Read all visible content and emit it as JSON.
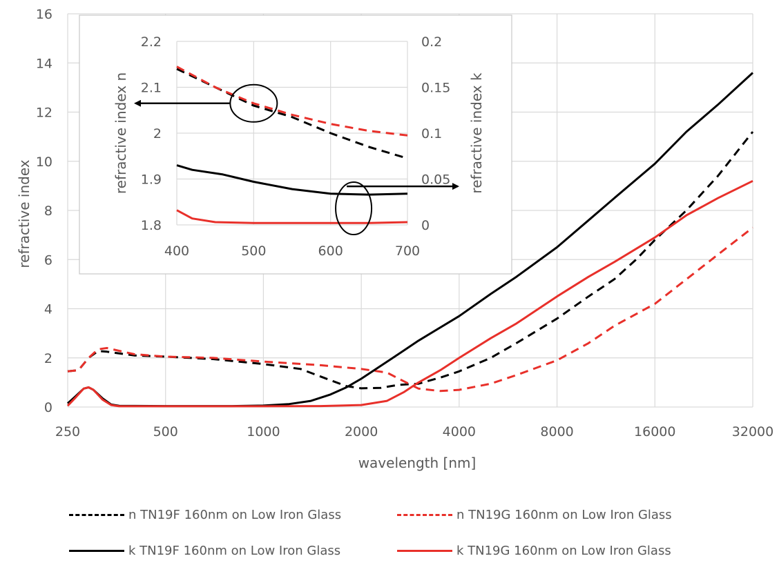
{
  "chart_data": [
    {
      "type": "line",
      "title": "",
      "xlabel": "wavelength [nm]",
      "ylabel": "refractive index",
      "xscale": "log2",
      "xlim": [
        250,
        32000
      ],
      "ylim": [
        0,
        16
      ],
      "xticks": [
        "250",
        "500",
        "1000",
        "2000",
        "4000",
        "8000",
        "16000",
        "32000"
      ],
      "yticks": [
        "0",
        "2",
        "4",
        "6",
        "8",
        "10",
        "12",
        "14",
        "16"
      ],
      "grid": true,
      "legend_position": "bottom",
      "series": [
        {
          "name": "n TN19F 160nm on Low Iron Glass",
          "color": "#000000",
          "style": "dashed",
          "points": [
            [
              250,
              1.45
            ],
            [
              270,
              1.5
            ],
            [
              290,
              2.0
            ],
            [
              310,
              2.28
            ],
            [
              330,
              2.25
            ],
            [
              400,
              2.1
            ],
            [
              500,
              2.05
            ],
            [
              700,
              1.95
            ],
            [
              1000,
              1.75
            ],
            [
              1300,
              1.55
            ],
            [
              1600,
              1.1
            ],
            [
              1800,
              0.85
            ],
            [
              2000,
              0.76
            ],
            [
              2300,
              0.78
            ],
            [
              2600,
              0.9
            ],
            [
              3000,
              0.95
            ],
            [
              3500,
              1.2
            ],
            [
              4000,
              1.45
            ],
            [
              5000,
              2.0
            ],
            [
              6000,
              2.6
            ],
            [
              8000,
              3.6
            ],
            [
              10000,
              4.5
            ],
            [
              12000,
              5.2
            ],
            [
              14000,
              6.0
            ],
            [
              16000,
              6.8
            ],
            [
              20000,
              8.0
            ],
            [
              25000,
              9.4
            ],
            [
              32000,
              11.2
            ]
          ]
        },
        {
          "name": "n TN19G 160nm on Low Iron Glass",
          "color": "#e8302a",
          "style": "dashed",
          "points": [
            [
              250,
              1.45
            ],
            [
              270,
              1.5
            ],
            [
              290,
              2.0
            ],
            [
              310,
              2.35
            ],
            [
              330,
              2.4
            ],
            [
              400,
              2.15
            ],
            [
              500,
              2.05
            ],
            [
              700,
              2.0
            ],
            [
              1000,
              1.85
            ],
            [
              1500,
              1.7
            ],
            [
              2000,
              1.55
            ],
            [
              2400,
              1.4
            ],
            [
              2700,
              1.05
            ],
            [
              3000,
              0.75
            ],
            [
              3500,
              0.65
            ],
            [
              4000,
              0.7
            ],
            [
              5000,
              0.95
            ],
            [
              6000,
              1.3
            ],
            [
              8000,
              1.9
            ],
            [
              10000,
              2.6
            ],
            [
              12000,
              3.3
            ],
            [
              16000,
              4.2
            ],
            [
              20000,
              5.2
            ],
            [
              25000,
              6.2
            ],
            [
              32000,
              7.3
            ]
          ]
        },
        {
          "name": "k TN19F 160nm on Low Iron Glass",
          "color": "#000000",
          "style": "solid",
          "points": [
            [
              250,
              0.15
            ],
            [
              265,
              0.45
            ],
            [
              280,
              0.75
            ],
            [
              290,
              0.8
            ],
            [
              300,
              0.7
            ],
            [
              320,
              0.35
            ],
            [
              340,
              0.1
            ],
            [
              360,
              0.05
            ],
            [
              500,
              0.04
            ],
            [
              800,
              0.04
            ],
            [
              1000,
              0.06
            ],
            [
              1200,
              0.12
            ],
            [
              1400,
              0.25
            ],
            [
              1600,
              0.5
            ],
            [
              1800,
              0.8
            ],
            [
              2000,
              1.15
            ],
            [
              2500,
              2.0
            ],
            [
              3000,
              2.7
            ],
            [
              4000,
              3.7
            ],
            [
              5000,
              4.6
            ],
            [
              6000,
              5.3
            ],
            [
              8000,
              6.5
            ],
            [
              10000,
              7.6
            ],
            [
              12000,
              8.5
            ],
            [
              16000,
              9.9
            ],
            [
              20000,
              11.2
            ],
            [
              25000,
              12.3
            ],
            [
              32000,
              13.6
            ]
          ]
        },
        {
          "name": "k TN19G 160nm on Low Iron Glass",
          "color": "#e8302a",
          "style": "solid",
          "points": [
            [
              250,
              0.05
            ],
            [
              265,
              0.4
            ],
            [
              280,
              0.75
            ],
            [
              290,
              0.8
            ],
            [
              300,
              0.7
            ],
            [
              320,
              0.3
            ],
            [
              340,
              0.08
            ],
            [
              360,
              0.03
            ],
            [
              1000,
              0.03
            ],
            [
              1500,
              0.04
            ],
            [
              2000,
              0.08
            ],
            [
              2400,
              0.25
            ],
            [
              2700,
              0.6
            ],
            [
              3000,
              1.0
            ],
            [
              3500,
              1.5
            ],
            [
              4000,
              2.0
            ],
            [
              5000,
              2.8
            ],
            [
              6000,
              3.4
            ],
            [
              8000,
              4.5
            ],
            [
              10000,
              5.3
            ],
            [
              12000,
              5.9
            ],
            [
              16000,
              6.9
            ],
            [
              20000,
              7.8
            ],
            [
              25000,
              8.5
            ],
            [
              32000,
              9.2
            ]
          ]
        }
      ]
    },
    {
      "type": "line",
      "title": "",
      "xlabel": "",
      "ylabel": "refractive index n",
      "y2label": "refractive index k",
      "xlim": [
        400,
        700
      ],
      "ylim": [
        1.8,
        2.2
      ],
      "y2lim": [
        0,
        0.2
      ],
      "xticks": [
        "400",
        "500",
        "600",
        "700"
      ],
      "yticks": [
        "1.8",
        "1.9",
        "2",
        "2.1",
        "2.2"
      ],
      "y2ticks": [
        "0",
        "0.05",
        "0.1",
        "0.15",
        "0.2"
      ],
      "grid": true,
      "annotations": [
        {
          "type": "ellipse",
          "target": "n curves",
          "arrow": "left"
        },
        {
          "type": "ellipse",
          "target": "k curves",
          "arrow": "right"
        }
      ],
      "series": [
        {
          "name": "n TN19F",
          "axis": "left",
          "color": "#000000",
          "style": "dashed",
          "points": [
            [
              400,
              2.14
            ],
            [
              450,
              2.1
            ],
            [
              500,
              2.06
            ],
            [
              550,
              2.035
            ],
            [
              600,
              2.0
            ],
            [
              650,
              1.97
            ],
            [
              700,
              1.945
            ]
          ]
        },
        {
          "name": "n TN19G",
          "axis": "left",
          "color": "#e8302a",
          "style": "dashed",
          "points": [
            [
              400,
              2.145
            ],
            [
              450,
              2.1
            ],
            [
              500,
              2.065
            ],
            [
              550,
              2.04
            ],
            [
              600,
              2.02
            ],
            [
              650,
              2.005
            ],
            [
              700,
              1.995
            ]
          ]
        },
        {
          "name": "k TN19F",
          "axis": "right",
          "color": "#000000",
          "style": "solid",
          "points": [
            [
              400,
              0.065
            ],
            [
              420,
              0.06
            ],
            [
              460,
              0.055
            ],
            [
              500,
              0.047
            ],
            [
              550,
              0.039
            ],
            [
              600,
              0.034
            ],
            [
              650,
              0.033
            ],
            [
              700,
              0.034
            ]
          ]
        },
        {
          "name": "k TN19G",
          "axis": "right",
          "color": "#e8302a",
          "style": "solid",
          "points": [
            [
              400,
              0.016
            ],
            [
              420,
              0.007
            ],
            [
              450,
              0.003
            ],
            [
              500,
              0.002
            ],
            [
              600,
              0.002
            ],
            [
              650,
              0.002
            ],
            [
              700,
              0.003
            ]
          ]
        }
      ]
    }
  ]
}
